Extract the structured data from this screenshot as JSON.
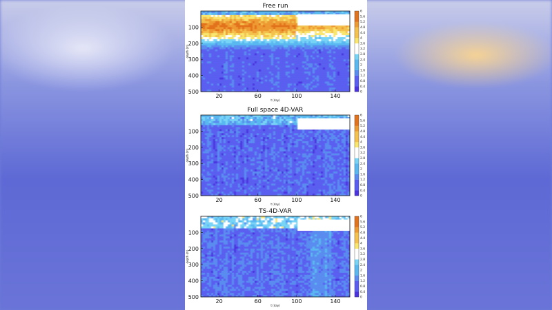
{
  "colors": {
    "colormap": [
      "#4b34e0",
      "#5a5ef0",
      "#5a8cf0",
      "#5ab8f0",
      "#78d4f6",
      "#ffffff",
      "#f8e66e",
      "#f4c14e",
      "#ee9a32",
      "#e2731e"
    ]
  },
  "chart_data": [
    {
      "type": "heatmap",
      "title": "Free run",
      "xlabel": "t (day)",
      "ylabel": "depth (m)",
      "xlim": [
        1,
        155
      ],
      "ylim": [
        500,
        0
      ],
      "xticks": [
        20,
        60,
        100,
        140
      ],
      "yticks": [
        100,
        200,
        300,
        400,
        500
      ],
      "colorbar": {
        "range": [
          0,
          6
        ],
        "ticks": [
          0,
          0.4,
          0.8,
          1.2,
          1.6,
          2,
          2.4,
          2.8,
          3.2,
          3.6,
          4,
          4.4,
          4.8,
          5.2,
          5.6,
          6
        ]
      },
      "pattern": "high values (4-6) in a band at 30-170 m depth, lower values (0.4-1.2) below 250 m"
    },
    {
      "type": "heatmap",
      "title": "Full space 4D-VAR",
      "xlabel": "t (day)",
      "ylabel": "depth (m)",
      "xlim": [
        1,
        155
      ],
      "ylim": [
        500,
        0
      ],
      "xticks": [
        20,
        60,
        100,
        140
      ],
      "yticks": [
        100,
        200,
        300,
        400,
        500
      ],
      "colorbar": {
        "range": [
          0,
          6
        ],
        "ticks": [
          0,
          0.4,
          0.8,
          1.2,
          1.6,
          2,
          2.4,
          2.8,
          3.2,
          3.6,
          4,
          4.4,
          4.8,
          5.2,
          5.6,
          6
        ]
      },
      "pattern": "low values (0.4-1.6) almost everywhere, moderate near surface"
    },
    {
      "type": "heatmap",
      "title": "TS-4D-VAR",
      "xlabel": "t (day)",
      "ylabel": "depth (m)",
      "xlim": [
        1,
        155
      ],
      "ylim": [
        500,
        0
      ],
      "xticks": [
        20,
        60,
        100,
        140
      ],
      "yticks": [
        100,
        200,
        300,
        400,
        500
      ],
      "colorbar": {
        "range": [
          0,
          6
        ],
        "ticks": [
          0,
          0.4,
          0.8,
          1.2,
          1.6,
          2,
          2.4,
          2.8,
          3.2,
          3.6,
          4,
          4.4,
          4.8,
          5.2,
          5.6,
          6
        ]
      },
      "pattern": "low values with slightly higher values (1.6-2.8) near the surface"
    }
  ]
}
